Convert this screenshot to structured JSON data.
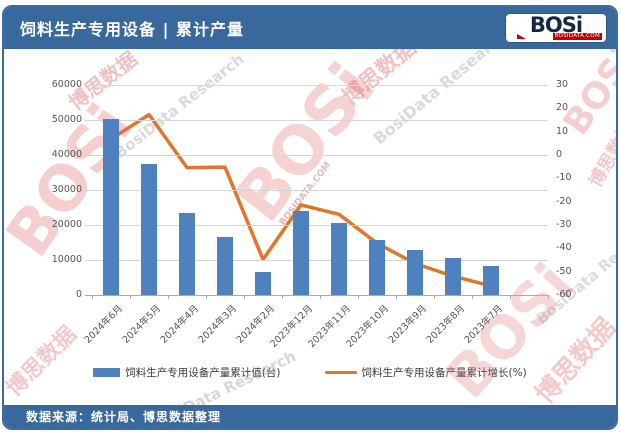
{
  "header": {
    "title": "饲料生产专用设备 | 累计产量",
    "logo": {
      "name": "BOSi",
      "domain": "BOSIDATA.COM"
    }
  },
  "footer": {
    "source": "数据来源：统计局、博思数据整理"
  },
  "watermarks": {
    "brand": "BOSi",
    "brand_cn": "博思数据",
    "research": "BosiData Research",
    "domain": "BOSIDATA.COM"
  },
  "chart_data": {
    "type": "bar",
    "subtype": "bar+line dual axis",
    "categories": [
      "2024年6月",
      "2024年5月",
      "2024年4月",
      "2024年3月",
      "2024年2月",
      "2023年12月",
      "2023年11月",
      "2023年10月",
      "2023年9月",
      "2023年8月",
      "2023年7月"
    ],
    "series": [
      {
        "name": "饲料生产专用设备产量累计值(台)",
        "type": "bar",
        "axis": "left",
        "color": "#4E81BD",
        "values": [
          50300,
          37500,
          23450,
          16650,
          6500,
          23900,
          20600,
          15600,
          12800,
          10450,
          8350
        ]
      },
      {
        "name": "饲料生产专用设备产量累计增长(%)",
        "type": "line",
        "axis": "right",
        "color": "#E0752C",
        "values": [
          6.8,
          17.3,
          -5.4,
          -5.2,
          -44.8,
          -21.4,
          -25.4,
          -37.8,
          -46.5,
          -51.9,
          -56.1
        ]
      }
    ],
    "left_axis": {
      "min": 0,
      "max": 60000,
      "step": 10000,
      "ticks": [
        0,
        10000,
        20000,
        30000,
        40000,
        50000,
        60000
      ]
    },
    "right_axis": {
      "min": -60,
      "max": 30,
      "step": 10,
      "ticks": [
        30,
        20,
        10,
        0,
        -10,
        -20,
        -30,
        -40,
        -50,
        -60
      ]
    },
    "grid": true,
    "legend_position": "bottom",
    "title": "饲料生产专用设备 | 累计产量",
    "source_note": "数据来源：统计局、博思数据整理"
  }
}
